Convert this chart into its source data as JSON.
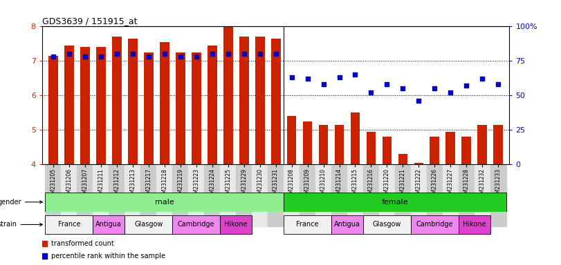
{
  "title": "GDS3639 / 151915_at",
  "samples": [
    "GSM231205",
    "GSM231206",
    "GSM231207",
    "GSM231211",
    "GSM231212",
    "GSM231213",
    "GSM231217",
    "GSM231218",
    "GSM231219",
    "GSM231223",
    "GSM231224",
    "GSM231225",
    "GSM231229",
    "GSM231230",
    "GSM231231",
    "GSM231208",
    "GSM231209",
    "GSM231210",
    "GSM231214",
    "GSM231215",
    "GSM231216",
    "GSM231220",
    "GSM231221",
    "GSM231222",
    "GSM231226",
    "GSM231227",
    "GSM231228",
    "GSM231232",
    "GSM231233"
  ],
  "bar_values": [
    7.15,
    7.45,
    7.4,
    7.4,
    7.7,
    7.65,
    7.25,
    7.55,
    7.25,
    7.25,
    7.45,
    8.0,
    7.7,
    7.7,
    7.65,
    5.4,
    5.25,
    5.15,
    5.15,
    5.5,
    4.95,
    4.8,
    4.3,
    4.05,
    4.8,
    4.95,
    4.8,
    5.15,
    5.15
  ],
  "percentile_values": [
    78,
    80,
    78,
    78,
    80,
    80,
    78,
    80,
    78,
    78,
    80,
    80,
    80,
    80,
    80,
    63,
    62,
    58,
    63,
    65,
    52,
    58,
    55,
    46,
    55,
    52,
    57,
    62,
    58
  ],
  "bar_color": "#cc2200",
  "dot_color": "#0000cc",
  "ylim_left": [
    4,
    8
  ],
  "ylim_right": [
    0,
    100
  ],
  "yticks_left": [
    4,
    5,
    6,
    7,
    8
  ],
  "yticks_right": [
    0,
    25,
    50,
    75,
    100
  ],
  "ytick_labels_right": [
    "0",
    "25",
    "50",
    "75",
    "100%"
  ],
  "n_male": 15,
  "n_female": 14,
  "strain_defs": [
    {
      "label": "France",
      "count": 3,
      "color": "#f0f0f0"
    },
    {
      "label": "Antigua",
      "count": 2,
      "color": "#ee88ee"
    },
    {
      "label": "Glasgow",
      "count": 3,
      "color": "#f0f0f0"
    },
    {
      "label": "Cambridge",
      "count": 3,
      "color": "#ee88ee"
    },
    {
      "label": "Hikone",
      "count": 2,
      "color": "#dd44cc"
    }
  ],
  "gender_color_male": "#90ee90",
  "gender_color_female": "#22cc22",
  "legend_items": [
    {
      "color": "#cc2200",
      "label": "transformed count"
    },
    {
      "color": "#0000cc",
      "label": "percentile rank within the sample"
    }
  ]
}
